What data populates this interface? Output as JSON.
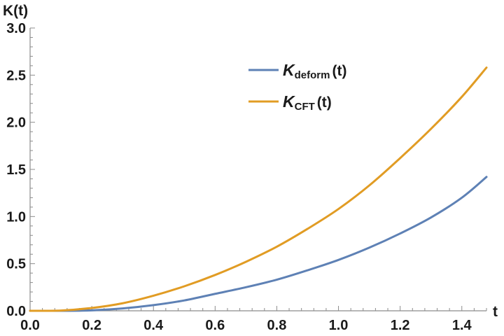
{
  "chart_data": {
    "type": "line",
    "xlabel": "t",
    "ylabel": "K(t)",
    "xlim": [
      0,
      1.48
    ],
    "ylim": [
      0,
      3.0
    ],
    "x_ticks": [
      0.0,
      0.2,
      0.4,
      0.6,
      0.8,
      1.0,
      1.2,
      1.4
    ],
    "x_tick_labels": [
      "0.0",
      "0.2",
      "0.4",
      "0.6",
      "0.8",
      "1.0",
      "1.2",
      "1.4"
    ],
    "y_ticks": [
      0.0,
      0.5,
      1.0,
      1.5,
      2.0,
      2.5,
      3.0
    ],
    "y_tick_labels": [
      "0.0",
      "0.5",
      "1.0",
      "1.5",
      "2.0",
      "2.5",
      "3.0"
    ],
    "grid": false,
    "legend_position": "top-right",
    "series": [
      {
        "name": "K",
        "name_subscript": "deform",
        "name_suffix": "(t)",
        "color": "#5e81b5",
        "x": [
          0.0,
          0.1,
          0.2,
          0.3,
          0.4,
          0.5,
          0.6,
          0.7,
          0.8,
          0.9,
          1.0,
          1.1,
          1.2,
          1.3,
          1.4,
          1.48
        ],
        "y": [
          0.0,
          0.0,
          0.005,
          0.025,
          0.06,
          0.11,
          0.18,
          0.25,
          0.33,
          0.43,
          0.54,
          0.67,
          0.82,
          0.99,
          1.2,
          1.42
        ]
      },
      {
        "name": "K",
        "name_subscript": "CFT",
        "name_suffix": "(t)",
        "color": "#e19c24",
        "x": [
          0.0,
          0.1,
          0.2,
          0.3,
          0.4,
          0.5,
          0.6,
          0.7,
          0.8,
          0.9,
          1.0,
          1.1,
          1.2,
          1.3,
          1.4,
          1.48
        ],
        "y": [
          0.0,
          0.003,
          0.03,
          0.08,
          0.16,
          0.26,
          0.38,
          0.52,
          0.68,
          0.87,
          1.08,
          1.33,
          1.62,
          1.93,
          2.27,
          2.58
        ]
      }
    ]
  }
}
